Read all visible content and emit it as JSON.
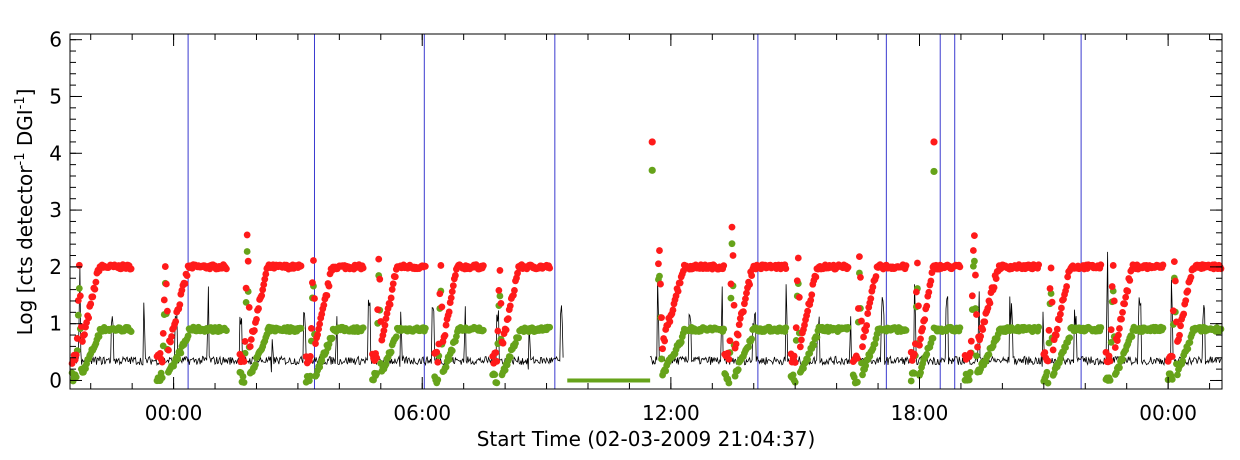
{
  "chart_data": {
    "type": "scatter",
    "title": "",
    "xlabel": "Start Time (02-03-2009 21:04:37)",
    "ylabel_parts": {
      "main": "Log [cts detector",
      "sup1": "-1",
      "mid": " DGI",
      "sup2": "-1",
      "end": "]"
    },
    "x_unit": "hours since 02-03-2009 00:00",
    "xlim": [
      21.5,
      49.3
    ],
    "ylim": [
      -0.15,
      6.1
    ],
    "y_ticks": [
      0,
      1,
      2,
      3,
      4,
      5,
      6
    ],
    "y_tick_labels": [
      "0",
      "1",
      "2",
      "3",
      "4",
      "5",
      "6"
    ],
    "x_ticks": [
      24,
      30,
      36,
      42,
      48
    ],
    "x_tick_labels": [
      "00:00",
      "06:00",
      "12:00",
      "18:00",
      "00:00"
    ],
    "vertical_lines": [
      24.35,
      27.4,
      30.05,
      33.2,
      38.1,
      41.2,
      42.5,
      42.85,
      45.9
    ],
    "colors": {
      "red": "#ff1a1a",
      "green": "#66a31a",
      "line": "#000000",
      "vline": "#3a3acf",
      "gap": "#66a31a"
    },
    "data_gap": [
      33.5,
      35.5
    ],
    "series": [
      {
        "name": "",
        "color": "red",
        "style": "dots",
        "cycles": [
          {
            "start": 21.55,
            "end": 23.0,
            "peak": 2.05
          },
          {
            "start": 23.6,
            "end": 25.3,
            "peak": 2.1
          },
          {
            "start": 25.6,
            "end": 27.1,
            "peak": 2.75
          },
          {
            "start": 27.2,
            "end": 28.6,
            "peak": 2.3
          },
          {
            "start": 28.8,
            "end": 30.1,
            "peak": 2.35
          },
          {
            "start": 30.3,
            "end": 31.5,
            "peak": 2.2
          },
          {
            "start": 31.7,
            "end": 33.1,
            "peak": 2.1
          },
          {
            "start": 35.5,
            "end": 37.3,
            "peak": 2.5
          },
          {
            "start": 37.3,
            "end": 38.8,
            "peak": 2.9
          },
          {
            "start": 38.9,
            "end": 40.3,
            "peak": 2.35
          },
          {
            "start": 40.4,
            "end": 41.7,
            "peak": 2.4
          },
          {
            "start": 41.8,
            "end": 43.0,
            "peak": 2.25
          },
          {
            "start": 43.1,
            "end": 44.9,
            "peak": 2.8
          },
          {
            "start": 45.0,
            "end": 46.4,
            "peak": 2.15
          },
          {
            "start": 46.5,
            "end": 47.9,
            "peak": 2.2
          },
          {
            "start": 48.0,
            "end": 49.3,
            "peak": 2.3
          }
        ],
        "outliers": [
          {
            "x": 35.55,
            "y": 4.2
          },
          {
            "x": 42.35,
            "y": 4.2
          }
        ]
      },
      {
        "name": "",
        "color": "green",
        "style": "dots",
        "plateau": 0.9,
        "trough": -0.05,
        "outliers": [
          {
            "x": 35.55,
            "y": 3.7
          },
          {
            "x": 42.35,
            "y": 3.68
          }
        ]
      },
      {
        "name": "",
        "color": "line",
        "style": "line",
        "baseline": 0.35,
        "spike_peaks": [
          0.9,
          1.3,
          2.1,
          1.5,
          1.8,
          1.5,
          1.2,
          2.6,
          2.3,
          2.2,
          1.7,
          1.9,
          2.1
        ]
      }
    ]
  }
}
